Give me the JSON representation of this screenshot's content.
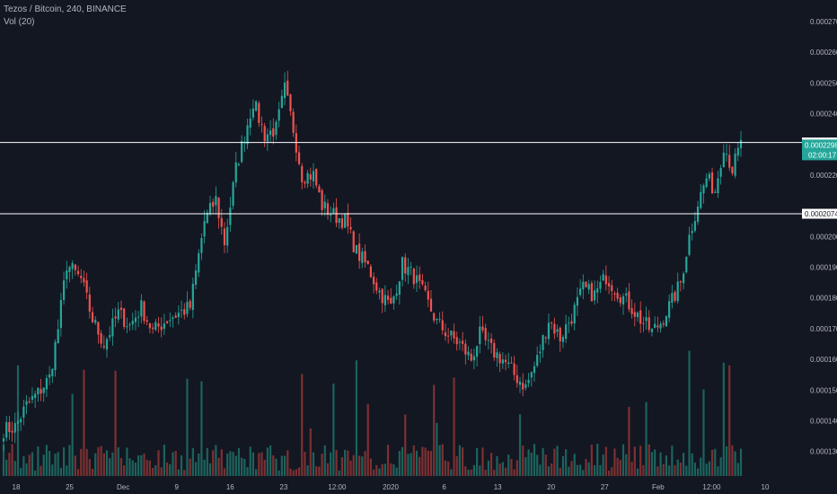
{
  "header": {
    "symbol_line": "Tezos / Bitcoin, 240, BINANCE",
    "indicator": "Vol (20)"
  },
  "colors": {
    "background": "#131722",
    "up": "#26a69a",
    "down": "#ef5350",
    "up_volume": "#1e6b64",
    "down_volume": "#8a3333",
    "grid_text": "#b2b5be",
    "hline": "#ffffff",
    "tag_bg": "#26a69a"
  },
  "chart_data": {
    "type": "candlestick",
    "title": "Tezos / Bitcoin, 240, BINANCE",
    "y_ticks": [
      "0.0002700",
      "0.0002600",
      "0.0002500",
      "0.0002400",
      "0.0002200",
      "0.0002000",
      "0.0001900",
      "0.0001800",
      "0.0001700",
      "0.0001600",
      "0.0001500",
      "0.0001400",
      "0.0001300"
    ],
    "x_ticks": [
      "18",
      "25",
      "Dec",
      "9",
      "16",
      "23",
      "12:00",
      "2020",
      "6",
      "13",
      "20",
      "27",
      "Feb",
      "12:00",
      "10"
    ],
    "ylim": [
      0.000122,
      0.000277
    ],
    "path_points": [
      {
        "t": 0,
        "p": 0.000137
      },
      {
        "t": 4,
        "p": 0.000138
      },
      {
        "t": 8,
        "p": 0.000145
      },
      {
        "t": 12,
        "p": 0.000149
      },
      {
        "t": 16,
        "p": 0.000154
      },
      {
        "t": 19,
        "p": 0.00017
      },
      {
        "t": 22,
        "p": 0.000191
      },
      {
        "t": 27,
        "p": 0.000186
      },
      {
        "t": 31,
        "p": 0.000173
      },
      {
        "t": 35,
        "p": 0.000165
      },
      {
        "t": 40,
        "p": 0.000175
      },
      {
        "t": 44,
        "p": 0.000171
      },
      {
        "t": 48,
        "p": 0.000177
      },
      {
        "t": 52,
        "p": 0.000169
      },
      {
        "t": 57,
        "p": 0.000173
      },
      {
        "t": 61,
        "p": 0.000175
      },
      {
        "t": 65,
        "p": 0.000177
      },
      {
        "t": 70,
        "p": 0.000205
      },
      {
        "t": 74,
        "p": 0.000212
      },
      {
        "t": 77,
        "p": 0.000198
      },
      {
        "t": 81,
        "p": 0.000222
      },
      {
        "t": 84,
        "p": 0.000233
      },
      {
        "t": 87,
        "p": 0.000244
      },
      {
        "t": 91,
        "p": 0.000233
      },
      {
        "t": 95,
        "p": 0.000235
      },
      {
        "t": 98,
        "p": 0.000248
      },
      {
        "t": 101,
        "p": 0.000235
      },
      {
        "t": 104,
        "p": 0.00022
      },
      {
        "t": 108,
        "p": 0.00022
      },
      {
        "t": 111,
        "p": 0.00021
      },
      {
        "t": 115,
        "p": 0.000207
      },
      {
        "t": 119,
        "p": 0.000205
      },
      {
        "t": 123,
        "p": 0.000195
      },
      {
        "t": 127,
        "p": 0.00019
      },
      {
        "t": 131,
        "p": 0.000182
      },
      {
        "t": 135,
        "p": 0.000177
      },
      {
        "t": 139,
        "p": 0.000191
      },
      {
        "t": 143,
        "p": 0.000187
      },
      {
        "t": 147,
        "p": 0.00018
      },
      {
        "t": 151,
        "p": 0.000172
      },
      {
        "t": 155,
        "p": 0.000168
      },
      {
        "t": 159,
        "p": 0.000165
      },
      {
        "t": 163,
        "p": 0.00016
      },
      {
        "t": 166,
        "p": 0.000168
      },
      {
        "t": 170,
        "p": 0.000163
      },
      {
        "t": 174,
        "p": 0.00016
      },
      {
        "t": 178,
        "p": 0.000155
      },
      {
        "t": 182,
        "p": 0.000151
      },
      {
        "t": 186,
        "p": 0.00016
      },
      {
        "t": 190,
        "p": 0.000173
      },
      {
        "t": 194,
        "p": 0.000167
      },
      {
        "t": 198,
        "p": 0.000174
      },
      {
        "t": 202,
        "p": 0.000183
      },
      {
        "t": 206,
        "p": 0.000181
      },
      {
        "t": 210,
        "p": 0.000187
      },
      {
        "t": 214,
        "p": 0.000182
      },
      {
        "t": 218,
        "p": 0.000178
      },
      {
        "t": 222,
        "p": 0.000173
      },
      {
        "t": 226,
        "p": 0.000169
      },
      {
        "t": 229,
        "p": 0.000172
      },
      {
        "t": 233,
        "p": 0.000179
      },
      {
        "t": 236,
        "p": 0.000185
      },
      {
        "t": 239,
        "p": 0.0002
      },
      {
        "t": 242,
        "p": 0.000211
      },
      {
        "t": 245,
        "p": 0.000219
      },
      {
        "t": 248,
        "p": 0.000215
      },
      {
        "t": 251,
        "p": 0.00023
      },
      {
        "t": 254,
        "p": 0.000222
      },
      {
        "t": 257,
        "p": 0.00023
      }
    ],
    "candle_count": 258,
    "horizontal_levels": [
      {
        "value": 0.0002306,
        "label": "0.0002306"
      },
      {
        "value": 0.0002074,
        "label": "0.0002074"
      }
    ],
    "last_price": {
      "value": 0.0002298,
      "label": "0.0002298"
    },
    "countdown": "02:00:17"
  }
}
